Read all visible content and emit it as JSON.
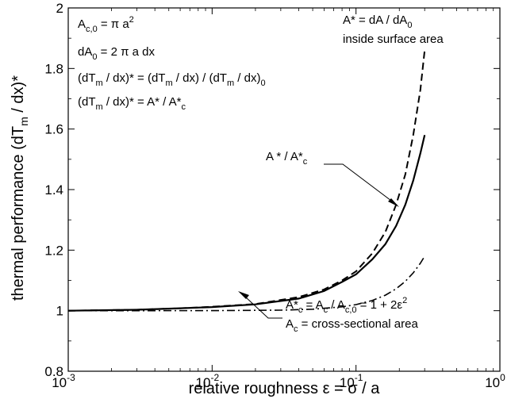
{
  "chart_data": {
    "type": "line",
    "xscale": "log",
    "xlim": [
      0.001,
      1
    ],
    "ylim": [
      0.8,
      2.0
    ],
    "grid": false,
    "xlabel": "relative roughness ε = σ / a",
    "ylabel": "thermal performance (dT / dx)*",
    "ylabel_sub": "m",
    "x_ticks": [
      {
        "value": 0.001,
        "base": "10",
        "exp": "-3"
      },
      {
        "value": 0.01,
        "base": "10",
        "exp": "-2"
      },
      {
        "value": 0.1,
        "base": "10",
        "exp": "-1"
      },
      {
        "value": 1,
        "base": "10",
        "exp": "0"
      }
    ],
    "y_ticks": [
      {
        "value": 0.8,
        "label": "0.8"
      },
      {
        "value": 1.0,
        "label": "1"
      },
      {
        "value": 1.2,
        "label": "1.2"
      },
      {
        "value": 1.4,
        "label": "1.4"
      },
      {
        "value": 1.6,
        "label": "1.6"
      },
      {
        "value": 1.8,
        "label": "1.8"
      },
      {
        "value": 2.0,
        "label": "2"
      }
    ],
    "series": [
      {
        "key": "area",
        "style": "dashed",
        "x": [
          0.001,
          0.003,
          0.006,
          0.01,
          0.02,
          0.04,
          0.06,
          0.08,
          0.1,
          0.13,
          0.16,
          0.19,
          0.22,
          0.25,
          0.28,
          0.3
        ],
        "y": [
          1.0,
          1.003,
          1.008,
          1.013,
          1.022,
          1.045,
          1.07,
          1.1,
          1.13,
          1.19,
          1.26,
          1.35,
          1.45,
          1.58,
          1.73,
          1.86
        ]
      },
      {
        "key": "ratio",
        "style": "solid",
        "x": [
          0.001,
          0.003,
          0.006,
          0.01,
          0.02,
          0.04,
          0.06,
          0.08,
          0.1,
          0.13,
          0.16,
          0.19,
          0.22,
          0.25,
          0.28,
          0.3
        ],
        "y": [
          1.0,
          1.003,
          1.008,
          1.012,
          1.021,
          1.04,
          1.065,
          1.095,
          1.12,
          1.17,
          1.22,
          1.28,
          1.35,
          1.43,
          1.52,
          1.58
        ]
      },
      {
        "key": "crosssection",
        "style": "dashdot",
        "x": [
          0.001,
          0.01,
          0.03,
          0.05,
          0.08,
          0.1,
          0.13,
          0.16,
          0.19,
          0.22,
          0.25,
          0.28,
          0.3
        ],
        "y": [
          1.0,
          1.0002,
          1.0018,
          1.005,
          1.0128,
          1.02,
          1.0338,
          1.0512,
          1.0722,
          1.0968,
          1.125,
          1.1568,
          1.18
        ]
      }
    ],
    "annotations": {
      "eq1": {
        "main": "A",
        "sub": "c,0",
        "mid": " = π a",
        "sup": "2"
      },
      "eq2": {
        "main": "dA",
        "sub": "0",
        "tail": " = 2 π a dx"
      },
      "eq3": {
        "a": "(dT",
        "sub1": "m",
        "b": " / dx)* = (dT",
        "sub2": "m",
        "c": " / dx) / (dT",
        "sub3": "m",
        "d": " / dx)",
        "sub4": "0"
      },
      "eq4": {
        "a": "(dT",
        "sub1": "m",
        "b": " / dx)* = A* / A*",
        "sub2": "c"
      },
      "area_label_line1": {
        "a": "A* = dA / dA",
        "sub": "0"
      },
      "area_label_line2": "inside surface area",
      "ratio_label": {
        "a": "A * / A*",
        "sub": "c"
      },
      "cross_label_line1": {
        "a": "A*",
        "sub1": "c",
        "b": " = A",
        "sub2": "c",
        "c": " / A",
        "sub3": "c,0",
        "d": " = 1 + 2ε",
        "sup": "2"
      },
      "cross_label_line2": {
        "a": "A",
        "sub": "c",
        "b": " = cross-sectional area"
      }
    }
  }
}
